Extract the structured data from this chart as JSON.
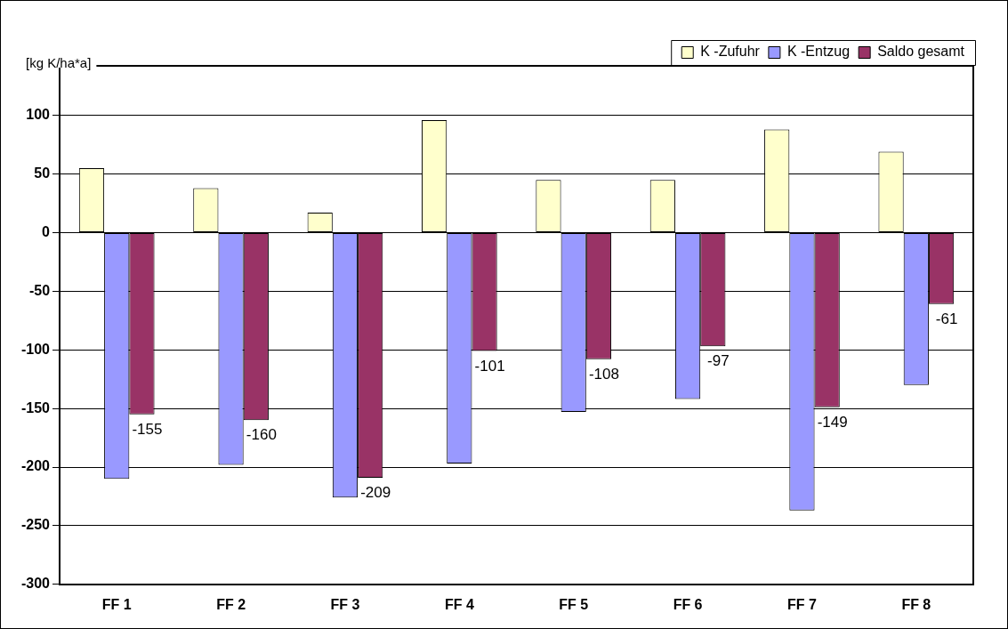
{
  "chart_data": {
    "type": "bar",
    "ylabel": "[kg K/ha*a]",
    "categories": [
      "FF 1",
      "FF 2",
      "FF 3",
      "FF 4",
      "FF 5",
      "FF 6",
      "FF 7",
      "FF 8"
    ],
    "series": [
      {
        "name": "K -Zufuhr",
        "color": "#ffffcc",
        "values": [
          55,
          38,
          17,
          96,
          45,
          45,
          88,
          69
        ]
      },
      {
        "name": "K -Entzug",
        "color": "#9999ff",
        "values": [
          -210,
          -198,
          -226,
          -197,
          -153,
          -142,
          -237,
          -130
        ]
      },
      {
        "name": "Saldo gesamt",
        "color": "#993366",
        "values": [
          -155,
          -160,
          -209,
          -101,
          -108,
          -97,
          -149,
          -61
        ],
        "value_labels": [
          "-155",
          "-160",
          "-209",
          "-101",
          "-108",
          "-97",
          "-149",
          "-61"
        ]
      }
    ],
    "ylim": [
      -300,
      140
    ],
    "yticks": [
      -300,
      -250,
      -200,
      -150,
      -100,
      -50,
      0,
      50,
      100
    ],
    "grid": "y",
    "legend": "top right"
  }
}
